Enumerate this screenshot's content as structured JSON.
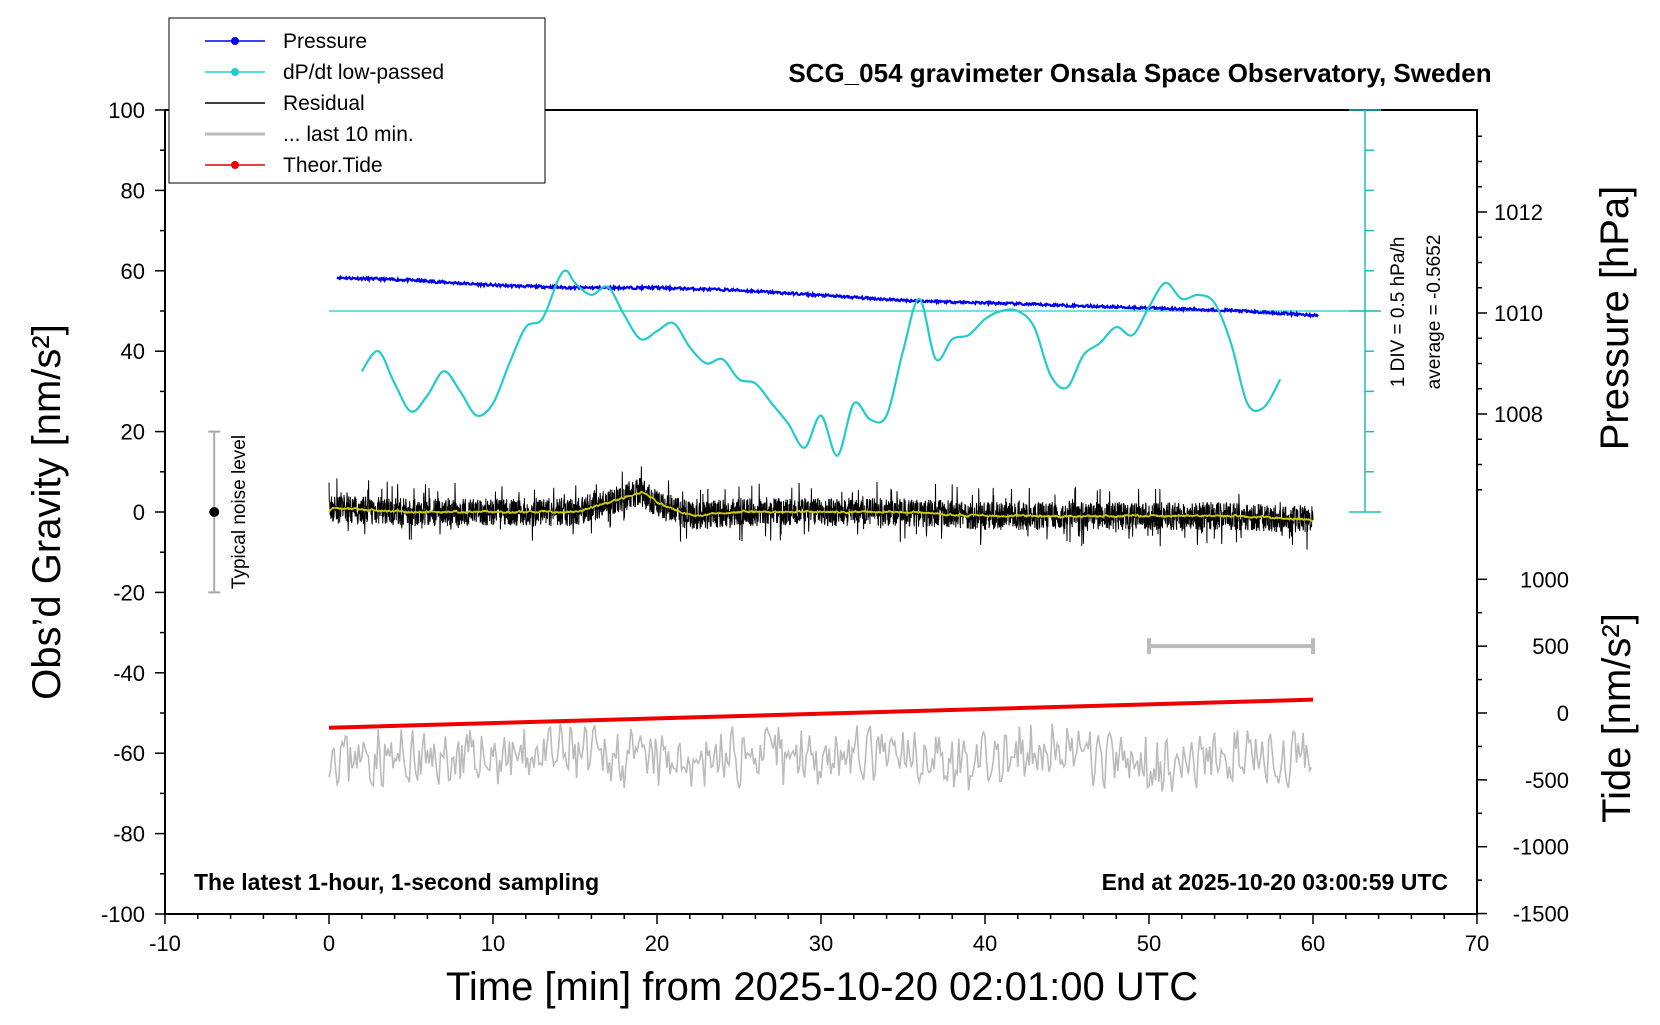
{
  "chart_data": {
    "type": "line",
    "title": "SCG_054 gravimeter Onsala Space Observatory, Sweden",
    "xlabel": "Time [min] from 2025-10-20 02:01:00 UTC",
    "ylabel": "Obs’d Gravity [nm/s²]",
    "ylabel_right_top": "Pressure [hPa]",
    "ylabel_right_bottom": "Tide [nm/s²]",
    "xlim": [
      -10,
      70
    ],
    "ylim": [
      -100,
      100
    ],
    "x_ticks": [
      "-10",
      "0",
      "10",
      "20",
      "30",
      "40",
      "50",
      "60",
      "70"
    ],
    "y_ticks": [
      "100",
      "80",
      "60",
      "40",
      "20",
      "0",
      "-20",
      "-40",
      "-60",
      "-80",
      "-100"
    ],
    "pressure_axis": {
      "ticks": [
        {
          "value": 1012,
          "label": "1012"
        },
        {
          "value": 1010,
          "label": "1010"
        },
        {
          "value": 1008,
          "label": "1008"
        }
      ]
    },
    "tide_axis": {
      "ticks": [
        {
          "value": 1000,
          "label": "1000"
        },
        {
          "value": 500,
          "label": "500"
        },
        {
          "value": 0,
          "label": "0"
        },
        {
          "value": -500,
          "label": "-500"
        },
        {
          "value": -1000,
          "label": "-1000"
        },
        {
          "value": -1500,
          "label": "-1500"
        }
      ]
    },
    "dpdt_scale_label": "1 DIV = 0.5 hPa/h",
    "dpdt_average_label": "average = -0.5652",
    "noise_label": "Typical noise level",
    "noise_range": [
      -20,
      20
    ],
    "noise_x": -7,
    "note_left": "The latest 1-hour, 1-second sampling",
    "note_right": "End at 2025-10-20 03:00:59 UTC",
    "last10_range": [
      50,
      60
    ],
    "last10_y_tide": 500,
    "legend": [
      {
        "label": "Pressure",
        "color": "#0000ee",
        "marker": true
      },
      {
        "label": "dP/dt low-passed",
        "color": "#22cccc",
        "marker": true
      },
      {
        "label": "Residual",
        "color": "#000000",
        "marker": false
      },
      {
        "label": "... last 10 min.",
        "color": "#bbbbbb",
        "marker": false
      },
      {
        "label": "Theor.Tide",
        "color": "#ee0000",
        "marker": true
      }
    ],
    "series": [
      {
        "name": "Pressure",
        "color": "#0000ee",
        "axis": "pressure_hPa",
        "x": [
          0.5,
          5,
          10,
          15,
          20,
          25,
          30,
          35,
          40,
          45,
          50,
          55,
          60.3
        ],
        "values": [
          1010.7,
          1010.65,
          1010.55,
          1010.5,
          1010.5,
          1010.45,
          1010.35,
          1010.25,
          1010.2,
          1010.15,
          1010.1,
          1010.05,
          1009.95
        ]
      },
      {
        "name": "dP/dt low-passed",
        "color": "#22cccc",
        "axis": "gravity_nm_s2",
        "x": [
          2,
          3,
          4,
          5,
          6,
          7,
          8,
          9,
          10,
          11,
          12,
          13,
          14,
          14.5,
          15,
          16,
          17,
          18,
          19,
          20,
          21,
          22,
          23,
          24,
          25,
          26,
          27,
          28,
          29,
          30,
          31,
          32,
          33,
          34,
          35,
          36,
          37,
          38,
          39,
          40,
          41,
          42,
          43,
          44,
          45,
          46,
          47,
          48,
          49,
          50,
          51,
          52,
          53,
          54,
          55,
          56,
          57,
          58
        ],
        "values": [
          35,
          40,
          32,
          25,
          29,
          35,
          30,
          24,
          27,
          37,
          46,
          48,
          58,
          60,
          57,
          54,
          56,
          49,
          43,
          45,
          47,
          41,
          37,
          38,
          33,
          32,
          27,
          22,
          16,
          24,
          14,
          27,
          23,
          24,
          40,
          53,
          38,
          43,
          44,
          48,
          50,
          50,
          46,
          34,
          31,
          39,
          42,
          46,
          44,
          51,
          57,
          53,
          54,
          52,
          42,
          27,
          26,
          33
        ]
      },
      {
        "name": "Residual",
        "color": "#000000",
        "axis": "gravity_nm_s2",
        "x": [
          0,
          5,
          10,
          15,
          19,
          20,
          22,
          25,
          30,
          35,
          40,
          45,
          50,
          55,
          60
        ],
        "values": [
          1,
          0,
          0,
          0,
          5,
          2,
          -1,
          0,
          0,
          0,
          -1,
          -1,
          -1,
          -1,
          -2
        ]
      },
      {
        "name": "... last 10 min.",
        "color": "#bbbbbb",
        "axis": "gravity_nm_s2",
        "x": [
          0,
          5,
          10,
          15,
          20,
          25,
          30,
          35,
          40,
          45,
          50,
          55,
          60
        ],
        "values": [
          -60,
          -62,
          -61,
          -60,
          -62,
          -61,
          -60,
          -61,
          -62,
          -60,
          -63,
          -61,
          -62
        ]
      },
      {
        "name": "Theor.Tide",
        "color": "#ee0000",
        "axis": "tide_nm_s2",
        "x": [
          0,
          60
        ],
        "values": [
          -110,
          100
        ]
      }
    ],
    "dpdt_zero_line": 50,
    "grid": false
  }
}
